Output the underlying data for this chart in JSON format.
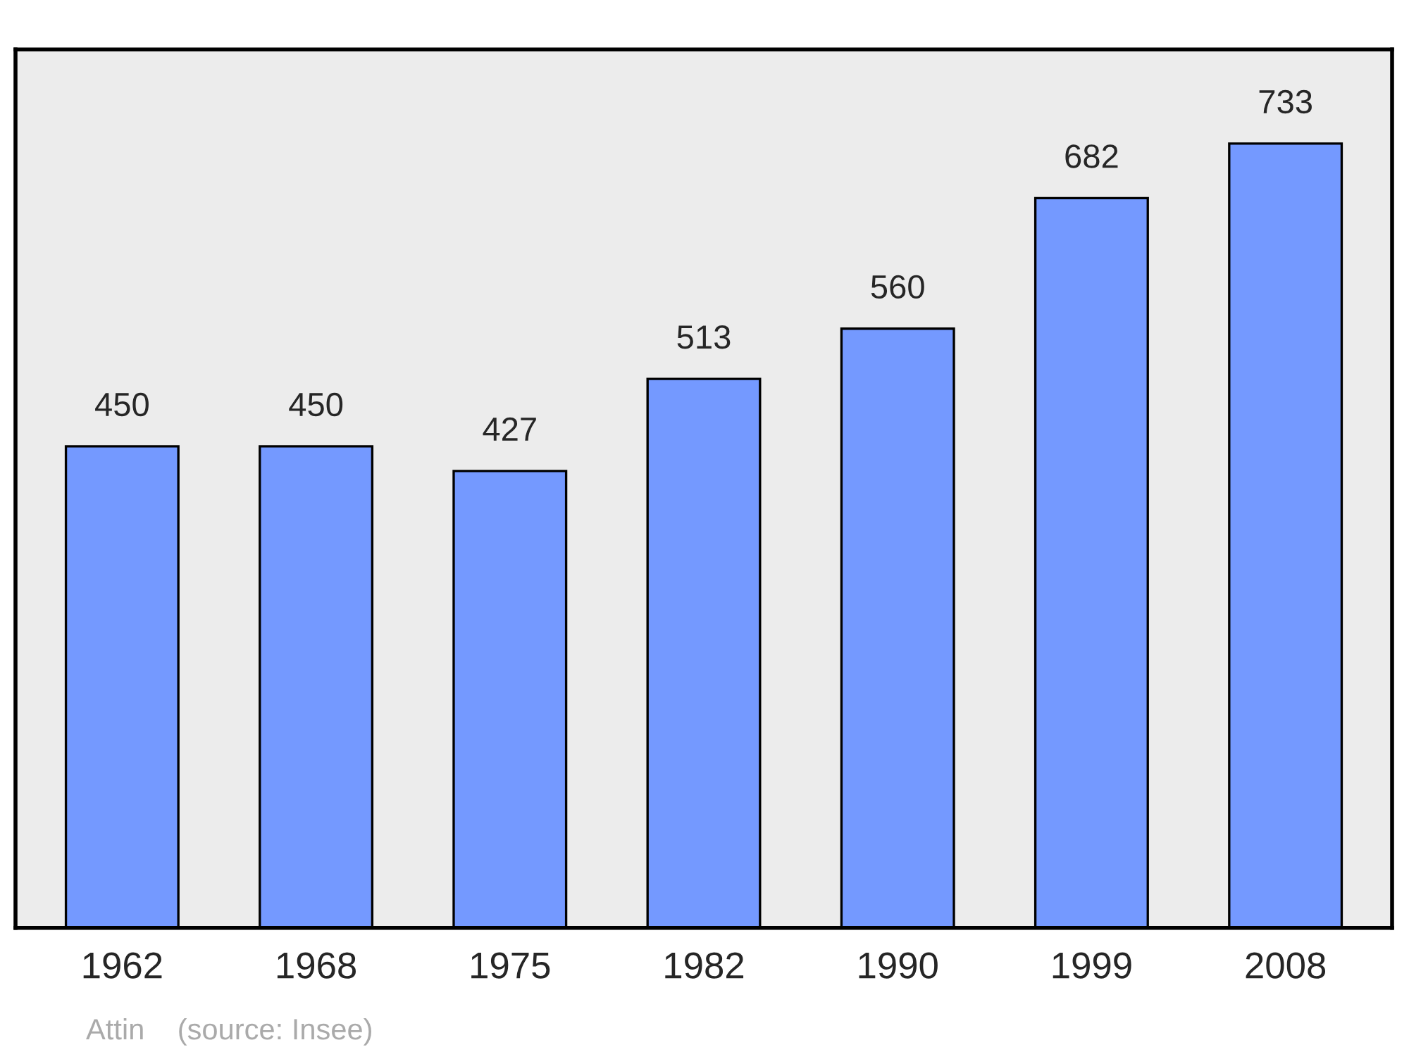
{
  "chart_data": {
    "type": "bar",
    "categories": [
      "1962",
      "1968",
      "1975",
      "1982",
      "1990",
      "1999",
      "2008"
    ],
    "values": [
      450,
      450,
      427,
      513,
      560,
      682,
      733
    ],
    "color": "#7499ff",
    "data_labels": true,
    "grid": false,
    "annotations": [
      "Attin    (source: Insee)"
    ]
  }
}
